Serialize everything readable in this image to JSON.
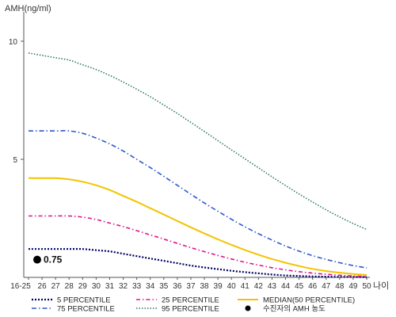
{
  "chart_data": {
    "type": "line",
    "y_axis_title": "AMH(ng/ml)",
    "x_axis_title": "나이",
    "categories": [
      "16-25",
      "26",
      "27",
      "28",
      "29",
      "30",
      "31",
      "32",
      "33",
      "34",
      "35",
      "36",
      "37",
      "38",
      "39",
      "40",
      "41",
      "42",
      "43",
      "44",
      "45",
      "46",
      "47",
      "48",
      "49",
      "50"
    ],
    "y_ticks": [
      "10",
      "5"
    ],
    "ylim": [
      0,
      11
    ],
    "grid": false,
    "series": [
      {
        "name": "5 PERCENTILE",
        "color": "#000066",
        "dash": "2,2",
        "width": 2.2,
        "values": [
          1.2,
          1.2,
          1.2,
          1.2,
          1.2,
          1.15,
          1.1,
          1.0,
          0.9,
          0.8,
          0.7,
          0.6,
          0.5,
          0.42,
          0.35,
          0.28,
          0.22,
          0.17,
          0.12,
          0.08,
          0.06,
          0.04,
          0.03,
          0.02,
          0.02,
          0.01
        ]
      },
      {
        "name": "25 PERCENTILE",
        "color": "#e0138c",
        "dash": "5,3,1.5,3",
        "width": 1.6,
        "values": [
          2.6,
          2.6,
          2.6,
          2.6,
          2.55,
          2.45,
          2.3,
          2.15,
          1.98,
          1.8,
          1.62,
          1.44,
          1.26,
          1.09,
          0.93,
          0.78,
          0.64,
          0.52,
          0.41,
          0.32,
          0.24,
          0.18,
          0.13,
          0.09,
          0.06,
          0.04
        ]
      },
      {
        "name": "MEDIAN(50 PERCENTILE)",
        "color": "#f2c400",
        "dash": "",
        "width": 2,
        "values": [
          4.2,
          4.2,
          4.2,
          4.15,
          4.05,
          3.9,
          3.7,
          3.45,
          3.2,
          2.93,
          2.66,
          2.39,
          2.12,
          1.86,
          1.61,
          1.38,
          1.16,
          0.96,
          0.78,
          0.62,
          0.48,
          0.36,
          0.27,
          0.2,
          0.14,
          0.1
        ]
      },
      {
        "name": "75 PERCENTILE",
        "color": "#2f59c9",
        "dash": "6,3,1.5,3",
        "width": 1.6,
        "values": [
          6.2,
          6.2,
          6.2,
          6.2,
          6.1,
          5.9,
          5.65,
          5.35,
          5.0,
          4.65,
          4.28,
          3.9,
          3.52,
          3.15,
          2.8,
          2.46,
          2.14,
          1.85,
          1.58,
          1.33,
          1.11,
          0.92,
          0.76,
          0.62,
          0.5,
          0.4
        ]
      },
      {
        "name": "95 PERCENTILE",
        "color": "#2e7d5b",
        "dash": "1.5,2",
        "width": 1.6,
        "values": [
          9.5,
          9.4,
          9.3,
          9.2,
          9.0,
          8.8,
          8.55,
          8.27,
          7.97,
          7.65,
          7.3,
          6.94,
          6.56,
          6.18,
          5.79,
          5.4,
          5.02,
          4.64,
          4.26,
          3.89,
          3.53,
          3.19,
          2.86,
          2.56,
          2.28,
          2.03
        ]
      }
    ],
    "marker": {
      "legend_label": "수진자의 AMH 농도",
      "x": "16-25",
      "y": 0.75,
      "label": "0.75"
    }
  }
}
